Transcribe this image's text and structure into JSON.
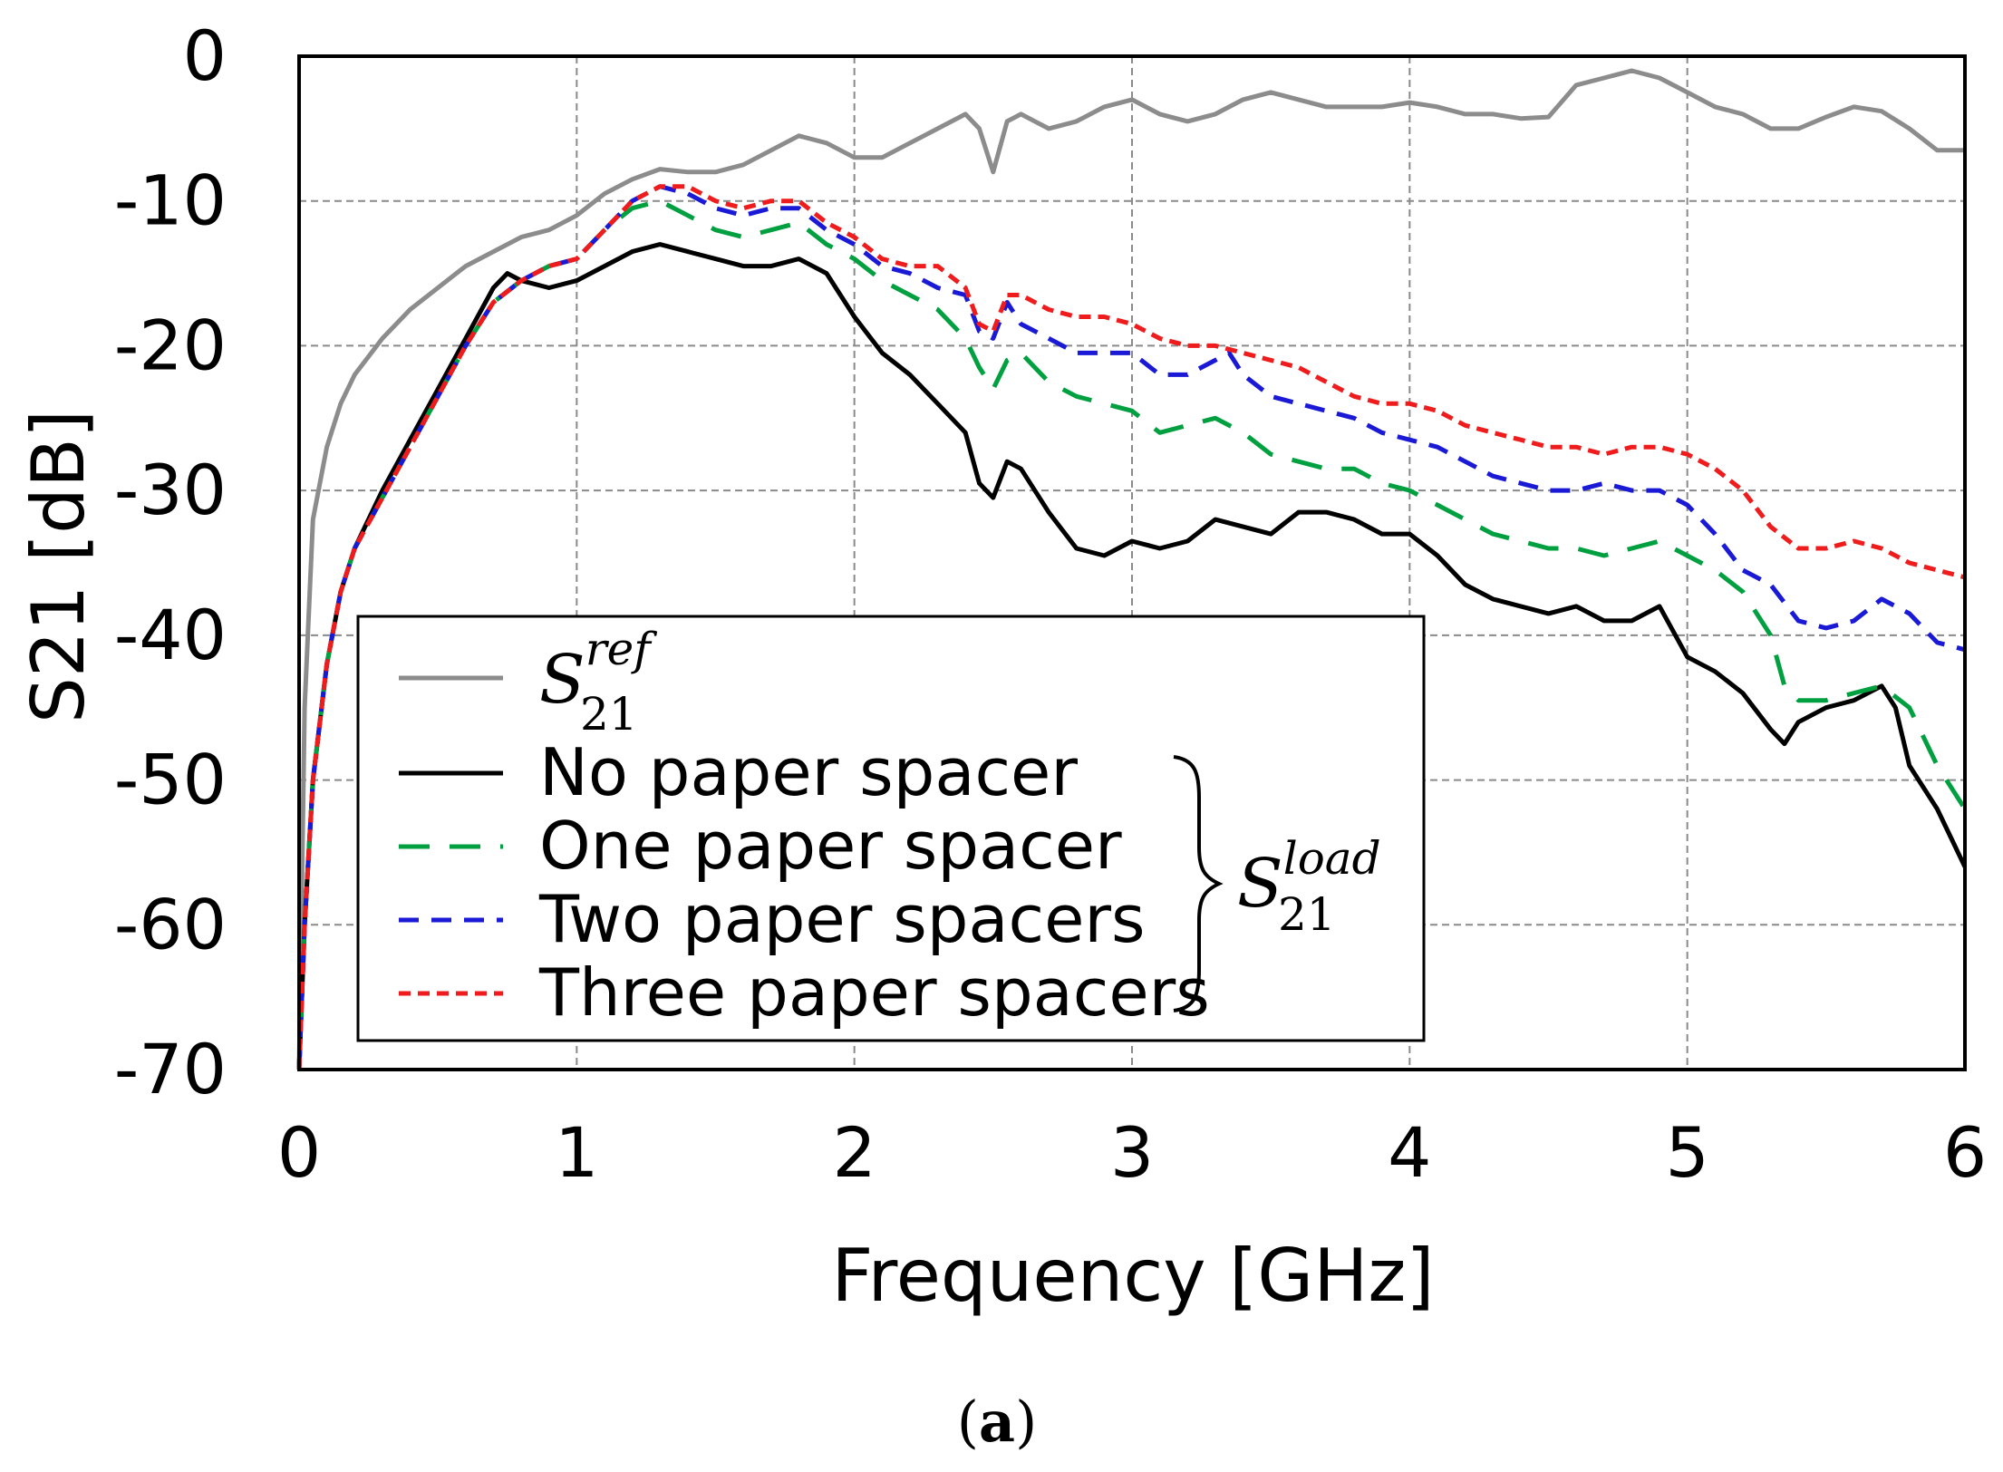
{
  "chart_data": {
    "type": "line",
    "title": "",
    "xlabel": "Frequency [GHz]",
    "ylabel": "S21 [dB]",
    "xlim": [
      0,
      6
    ],
    "ylim": [
      -70,
      0
    ],
    "xticks": [
      "0",
      "1",
      "2",
      "3",
      "4",
      "5",
      "6"
    ],
    "yticks": [
      "0",
      "-10",
      "-20",
      "-30",
      "-40",
      "-50",
      "-60",
      "-70"
    ],
    "grid": true,
    "legend_position": "lower-left",
    "caption": {
      "open": "(",
      "label": "a",
      "close": ")"
    },
    "brace_label": {
      "base": "S",
      "sup": "load",
      "sub": "21"
    },
    "series": [
      {
        "name": "S21ref",
        "legend_math": {
          "base": "S",
          "sup": "ref",
          "sub": "21"
        },
        "color": "#8c8c8c",
        "dash": "solid",
        "x": [
          0,
          0.02,
          0.05,
          0.1,
          0.15,
          0.2,
          0.3,
          0.4,
          0.5,
          0.6,
          0.7,
          0.8,
          0.9,
          1.0,
          1.1,
          1.2,
          1.3,
          1.4,
          1.5,
          1.6,
          1.7,
          1.8,
          1.9,
          2.0,
          2.1,
          2.2,
          2.3,
          2.4,
          2.45,
          2.5,
          2.55,
          2.6,
          2.7,
          2.8,
          2.9,
          3.0,
          3.1,
          3.2,
          3.3,
          3.4,
          3.5,
          3.6,
          3.7,
          3.8,
          3.9,
          4.0,
          4.1,
          4.2,
          4.3,
          4.4,
          4.5,
          4.6,
          4.7,
          4.8,
          4.9,
          5.0,
          5.1,
          5.2,
          5.3,
          5.4,
          5.5,
          5.6,
          5.7,
          5.8,
          5.9,
          6.0
        ],
        "y": [
          -70,
          -45,
          -32,
          -27,
          -24,
          -22,
          -19.5,
          -17.5,
          -16,
          -14.5,
          -13.5,
          -12.5,
          -12,
          -11,
          -9.5,
          -8.5,
          -7.8,
          -8,
          -8,
          -7.5,
          -6.5,
          -5.5,
          -6,
          -7,
          -7,
          -6,
          -5,
          -4,
          -5,
          -8,
          -4.5,
          -4,
          -5,
          -4.5,
          -3.5,
          -3,
          -4,
          -4.5,
          -4,
          -3,
          -2.5,
          -3,
          -3.5,
          -3.5,
          -3.5,
          -3.2,
          -3.5,
          -4,
          -4,
          -4.3,
          -4.2,
          -2,
          -1.5,
          -1.0,
          -1.5,
          -2.5,
          -3.5,
          -4,
          -5,
          -5,
          -4.2,
          -3.5,
          -3.8,
          -5,
          -6.5,
          -6.5
        ]
      },
      {
        "name": "No paper spacer",
        "color": "#000000",
        "dash": "solid",
        "x": [
          0,
          0.02,
          0.05,
          0.1,
          0.15,
          0.2,
          0.3,
          0.4,
          0.5,
          0.6,
          0.7,
          0.75,
          0.8,
          0.9,
          1.0,
          1.1,
          1.2,
          1.3,
          1.4,
          1.5,
          1.6,
          1.7,
          1.8,
          1.9,
          2.0,
          2.1,
          2.2,
          2.3,
          2.4,
          2.45,
          2.5,
          2.55,
          2.6,
          2.7,
          2.8,
          2.9,
          3.0,
          3.1,
          3.2,
          3.3,
          3.4,
          3.5,
          3.6,
          3.7,
          3.8,
          3.9,
          4.0,
          4.1,
          4.2,
          4.3,
          4.4,
          4.5,
          4.6,
          4.7,
          4.8,
          4.9,
          5.0,
          5.1,
          5.2,
          5.3,
          5.35,
          5.4,
          5.5,
          5.6,
          5.7,
          5.75,
          5.8,
          5.9,
          6.0
        ],
        "y": [
          -70,
          -60,
          -50,
          -42,
          -37,
          -34,
          -30,
          -26.5,
          -23,
          -19.5,
          -16,
          -15,
          -15.5,
          -16,
          -15.5,
          -14.5,
          -13.5,
          -13,
          -13.5,
          -14,
          -14.5,
          -14.5,
          -14,
          -15,
          -18,
          -20.5,
          -22,
          -24,
          -26,
          -29.5,
          -30.5,
          -28,
          -28.5,
          -31.5,
          -34,
          -34.5,
          -33.5,
          -34,
          -33.5,
          -32,
          -32.5,
          -33,
          -31.5,
          -31.5,
          -32,
          -33,
          -33,
          -34.5,
          -36.5,
          -37.5,
          -38,
          -38.5,
          -38,
          -39,
          -39,
          -38,
          -41.5,
          -42.5,
          -44,
          -46.5,
          -47.5,
          -46,
          -45,
          -44.5,
          -43.5,
          -45,
          -49,
          -52,
          -56
        ]
      },
      {
        "name": "One paper spacer",
        "color": "#00a040",
        "dash": "long",
        "x": [
          0,
          0.02,
          0.05,
          0.1,
          0.15,
          0.2,
          0.3,
          0.4,
          0.5,
          0.6,
          0.7,
          0.8,
          0.9,
          1.0,
          1.1,
          1.2,
          1.3,
          1.4,
          1.5,
          1.6,
          1.7,
          1.8,
          1.9,
          2.0,
          2.1,
          2.2,
          2.3,
          2.4,
          2.45,
          2.5,
          2.55,
          2.6,
          2.7,
          2.8,
          2.9,
          3.0,
          3.1,
          3.2,
          3.3,
          3.4,
          3.5,
          3.6,
          3.7,
          3.8,
          3.9,
          4.0,
          4.1,
          4.2,
          4.3,
          4.4,
          4.5,
          4.6,
          4.7,
          4.8,
          4.9,
          5.0,
          5.1,
          5.2,
          5.3,
          5.35,
          5.4,
          5.5,
          5.6,
          5.7,
          5.8,
          5.9,
          6.0
        ],
        "y": [
          -70,
          -60,
          -50,
          -42,
          -37,
          -34,
          -30.5,
          -27,
          -23.5,
          -20,
          -17,
          -15.5,
          -14.5,
          -14,
          -12,
          -10.5,
          -10,
          -11,
          -12,
          -12.5,
          -12,
          -11.5,
          -13,
          -14,
          -15.5,
          -16.5,
          -17.5,
          -19.5,
          -21.5,
          -23,
          -21,
          -20.5,
          -22.5,
          -23.5,
          -24,
          -24.5,
          -26,
          -25.5,
          -25,
          -26,
          -27.5,
          -28,
          -28.5,
          -28.5,
          -29.5,
          -30,
          -31,
          -32,
          -33,
          -33.5,
          -34,
          -34,
          -34.5,
          -34,
          -33.5,
          -34.5,
          -35.5,
          -37,
          -40,
          -43.5,
          -44.5,
          -44.5,
          -44,
          -43.5,
          -45,
          -49,
          -52
        ]
      },
      {
        "name": "Two paper spacers",
        "color": "#1a1ad6",
        "dash": "medium",
        "x": [
          0,
          0.02,
          0.05,
          0.1,
          0.15,
          0.2,
          0.3,
          0.4,
          0.5,
          0.6,
          0.7,
          0.8,
          0.9,
          1.0,
          1.1,
          1.2,
          1.3,
          1.4,
          1.5,
          1.6,
          1.7,
          1.8,
          1.9,
          2.0,
          2.1,
          2.2,
          2.3,
          2.4,
          2.45,
          2.5,
          2.55,
          2.6,
          2.7,
          2.8,
          2.9,
          3.0,
          3.1,
          3.2,
          3.3,
          3.35,
          3.4,
          3.5,
          3.6,
          3.7,
          3.8,
          3.9,
          4.0,
          4.1,
          4.2,
          4.3,
          4.4,
          4.5,
          4.6,
          4.7,
          4.8,
          4.9,
          5.0,
          5.1,
          5.2,
          5.3,
          5.4,
          5.5,
          5.6,
          5.7,
          5.8,
          5.9,
          6.0
        ],
        "y": [
          -70,
          -60,
          -50,
          -42,
          -37,
          -34,
          -30.5,
          -27,
          -23.5,
          -20,
          -17,
          -15.5,
          -14.5,
          -14,
          -12,
          -10,
          -9,
          -9.5,
          -10.5,
          -11,
          -10.5,
          -10.5,
          -12,
          -13,
          -14.5,
          -15,
          -16,
          -16.5,
          -19,
          -19.5,
          -17,
          -18.5,
          -19.5,
          -20.5,
          -20.5,
          -20.5,
          -22,
          -22,
          -21,
          -20.5,
          -22,
          -23.5,
          -24,
          -24.5,
          -25,
          -26,
          -26.5,
          -27,
          -28,
          -29,
          -29.5,
          -30,
          -30,
          -29.5,
          -30,
          -30,
          -31,
          -33,
          -35.5,
          -36.5,
          -39,
          -39.5,
          -39,
          -37.5,
          -38.5,
          -40.5,
          -41
        ]
      },
      {
        "name": "Three paper spacers",
        "color": "#ee1c1c",
        "dash": "short",
        "x": [
          0,
          0.02,
          0.05,
          0.1,
          0.15,
          0.2,
          0.3,
          0.4,
          0.5,
          0.6,
          0.7,
          0.8,
          0.9,
          1.0,
          1.1,
          1.2,
          1.3,
          1.4,
          1.5,
          1.6,
          1.7,
          1.8,
          1.9,
          2.0,
          2.1,
          2.2,
          2.3,
          2.4,
          2.45,
          2.5,
          2.55,
          2.6,
          2.7,
          2.8,
          2.9,
          3.0,
          3.1,
          3.2,
          3.3,
          3.4,
          3.5,
          3.6,
          3.7,
          3.8,
          3.9,
          4.0,
          4.1,
          4.2,
          4.3,
          4.4,
          4.5,
          4.6,
          4.7,
          4.8,
          4.9,
          5.0,
          5.1,
          5.2,
          5.3,
          5.4,
          5.5,
          5.6,
          5.7,
          5.8,
          5.9,
          6.0
        ],
        "y": [
          -70,
          -60,
          -50,
          -42,
          -37,
          -34,
          -30.5,
          -27,
          -23.5,
          -20,
          -17,
          -15.5,
          -14.5,
          -14,
          -12,
          -10,
          -9,
          -9,
          -10,
          -10.5,
          -10,
          -10,
          -11.5,
          -12.5,
          -14,
          -14.5,
          -14.5,
          -16,
          -18.5,
          -19,
          -16.5,
          -16.5,
          -17.5,
          -18,
          -18,
          -18.5,
          -19.5,
          -20,
          -20,
          -20.5,
          -21,
          -21.5,
          -22.5,
          -23.5,
          -24,
          -24,
          -24.5,
          -25.5,
          -26,
          -26.5,
          -27,
          -27,
          -27.5,
          -27,
          -27,
          -27.5,
          -28.5,
          -30,
          -32.5,
          -34,
          -34,
          -33.5,
          -34,
          -35,
          -35.5,
          -36
        ]
      }
    ]
  }
}
